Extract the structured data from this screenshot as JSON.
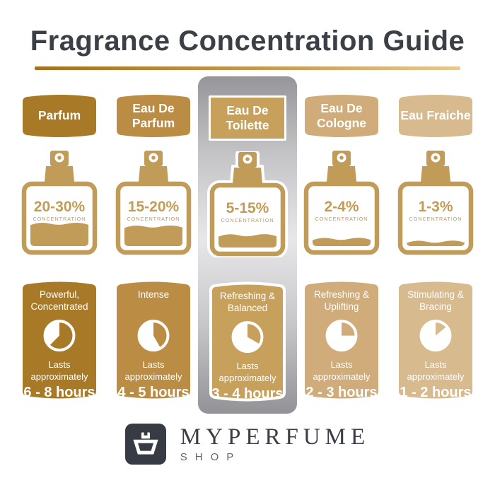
{
  "title": "Fragrance Concentration Guide",
  "labels": {
    "concentration": "CONCENTRATION",
    "lasts": "Lasts approximately"
  },
  "colors": {
    "title_text": "#3B4046",
    "bottle_gold": "#C19C58",
    "underline_left": "#A3721C",
    "underline_right": "#E6CA92",
    "silver_panel": "#C2C2C4"
  },
  "columns": [
    {
      "name": "Parfum",
      "concentration": "20-30%",
      "trait": "Powerful, Concentrated",
      "duration": "6 - 8 hours",
      "accent": "#A87A28",
      "clock_degrees": 225,
      "fill_percent": 40,
      "highlighted": false
    },
    {
      "name": "Eau De Parfum",
      "concentration": "15-20%",
      "trait": "Intense",
      "duration": "4 - 5 hours",
      "accent": "#BB8C43",
      "clock_degrees": 150,
      "fill_percent": 35,
      "highlighted": false
    },
    {
      "name": "Eau De Toilette",
      "concentration": "5-15%",
      "trait": "Refreshing & Balanced",
      "duration": "3 - 4 hours",
      "accent": "#C7A15C",
      "clock_degrees": 120,
      "fill_percent": 22,
      "highlighted": true
    },
    {
      "name": "Eau De Cologne",
      "concentration": "2-4%",
      "trait": "Refreshing & Uplifting",
      "duration": "2 - 3 hours",
      "accent": "#CFAC79",
      "clock_degrees": 90,
      "fill_percent": 13,
      "highlighted": false
    },
    {
      "name": "Eau Fraiche",
      "concentration": "1-3%",
      "trait": "Stimulating & Bracing",
      "duration": "1 - 2 hours",
      "accent": "#D7BA8E",
      "clock_degrees": 50,
      "fill_percent": 8,
      "highlighted": false
    }
  ],
  "brand": {
    "name": "MYPERFUME",
    "sub": "SHOP"
  }
}
